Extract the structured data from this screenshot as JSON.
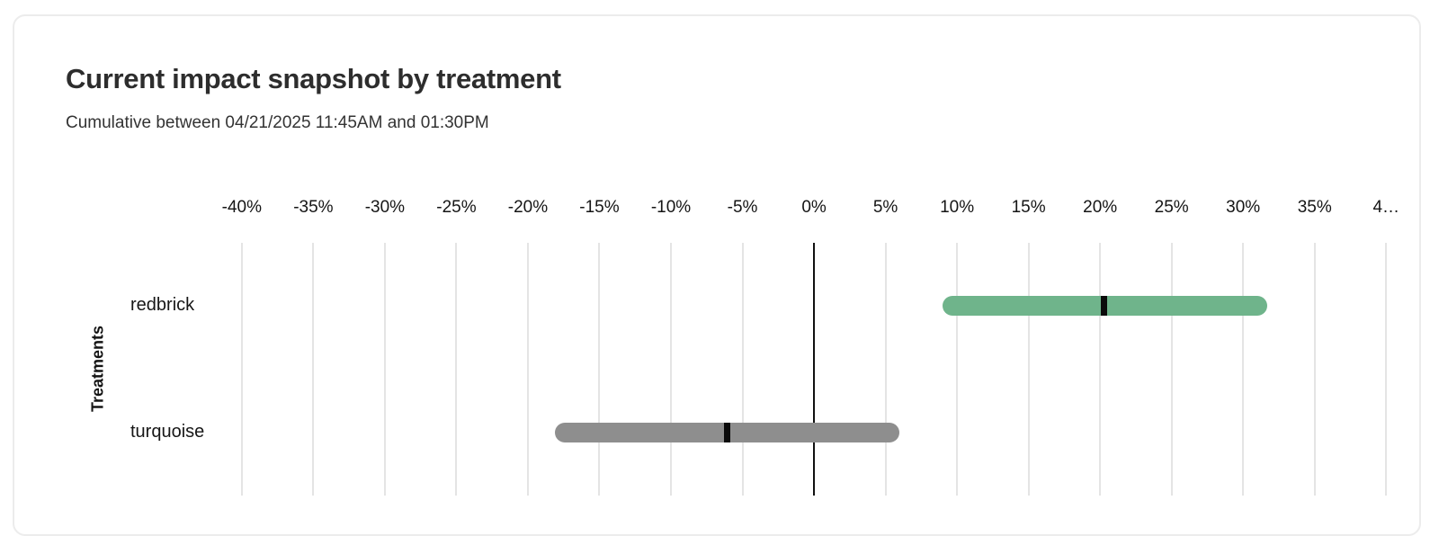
{
  "chart_data": {
    "type": "bar",
    "orientation": "horizontal",
    "title": "Current impact snapshot by treatment",
    "subtitle": "Cumulative between 04/21/2025 11:45AM and 01:30PM",
    "ylabel": "Treatments",
    "xlabel": "",
    "xlim": [
      -41.5,
      42.5
    ],
    "grid": true,
    "legend": "none",
    "x_tick_values": [
      -40,
      -35,
      -30,
      -25,
      -20,
      -15,
      -10,
      -5,
      0,
      5,
      10,
      15,
      20,
      25,
      30,
      35,
      40
    ],
    "x_tick_labels": [
      "-40%",
      "-35%",
      "-30%",
      "-25%",
      "-20%",
      "-15%",
      "-10%",
      "-5%",
      "0%",
      "5%",
      "10%",
      "15%",
      "20%",
      "25%",
      "30%",
      "35%",
      "4…"
    ],
    "categories": [
      "redbrick",
      "turquoise"
    ],
    "series": [
      {
        "name": "redbrick",
        "low_pct": 9.0,
        "estimate_pct": 20.3,
        "high_pct": 31.7,
        "color": "#6FB48B"
      },
      {
        "name": "turquoise",
        "low_pct": -18.1,
        "estimate_pct": -6.1,
        "high_pct": 6.0,
        "color": "#8E8E8E"
      }
    ],
    "marker_color": "#0B0B0B",
    "grid_color": "#E4E4E4",
    "zero_line_color": "#111111"
  }
}
